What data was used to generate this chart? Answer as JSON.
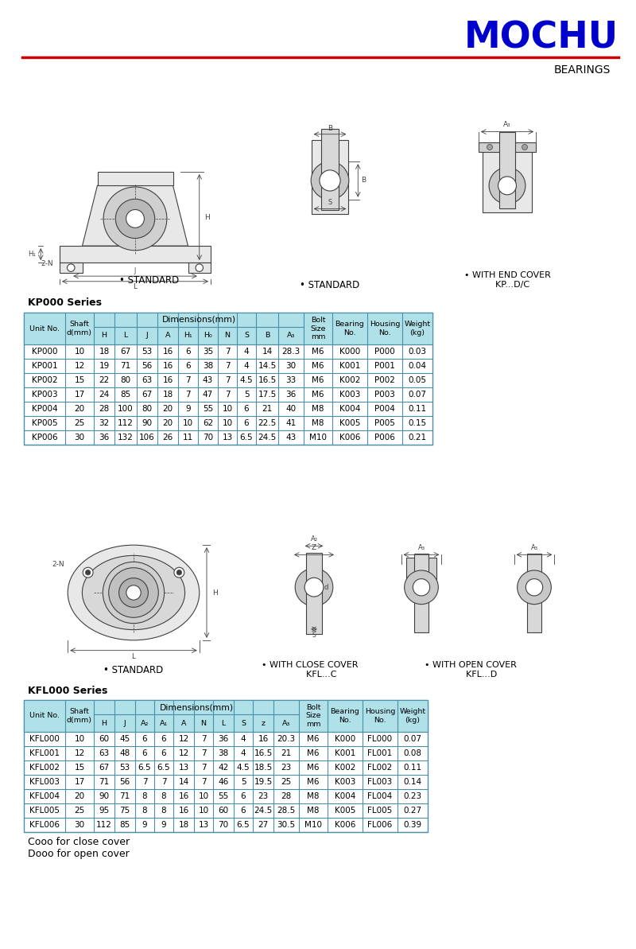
{
  "title": "MOCHU",
  "subtitle": "BEARINGS",
  "title_color": "#0000CC",
  "subtitle_color": "#000000",
  "red_line_color": "#CC0000",
  "bg_color": "#FFFFFF",
  "table_header_bg": "#B0E0E8",
  "table_border_color": "#4A8FA8",
  "kp_series_label": "KP000 Series",
  "kfl_series_label": "KFL000 Series",
  "standard_label": "• STANDARD",
  "end_cover_label": "• WITH END COVER\n    KP...D/C",
  "kfl_standard_label": "• STANDARD",
  "kfl_close_label": "• WITH CLOSE COVER\n        KFL...C",
  "kfl_open_label": "• WITH OPEN COVER\n        KFL...D",
  "footer1": "Cooo for close cover",
  "footer2": "Dooo for open cover",
  "kp_col_headers": [
    "Unit No.",
    "Shaft\nd(mm)",
    "H",
    "L",
    "J",
    "A",
    "H₁",
    "H₀",
    "N",
    "S",
    "B",
    "A₃",
    "Bolt\nSize\nmm",
    "Bearing\nNo.",
    "Housing\nNo.",
    "Weight\n(kg)"
  ],
  "kp_data": [
    [
      "KP000",
      "10",
      "18",
      "67",
      "53",
      "16",
      "6",
      "35",
      "7",
      "4",
      "14",
      "28.3",
      "M6",
      "K000",
      "P000",
      "0.03"
    ],
    [
      "KP001",
      "12",
      "19",
      "71",
      "56",
      "16",
      "6",
      "38",
      "7",
      "4",
      "14.5",
      "30",
      "M6",
      "K001",
      "P001",
      "0.04"
    ],
    [
      "KP002",
      "15",
      "22",
      "80",
      "63",
      "16",
      "7",
      "43",
      "7",
      "4.5",
      "16.5",
      "33",
      "M6",
      "K002",
      "P002",
      "0.05"
    ],
    [
      "KP003",
      "17",
      "24",
      "85",
      "67",
      "18",
      "7",
      "47",
      "7",
      "5",
      "17.5",
      "36",
      "M6",
      "K003",
      "P003",
      "0.07"
    ],
    [
      "KP004",
      "20",
      "28",
      "100",
      "80",
      "20",
      "9",
      "55",
      "10",
      "6",
      "21",
      "40",
      "M8",
      "K004",
      "P004",
      "0.11"
    ],
    [
      "KP005",
      "25",
      "32",
      "112",
      "90",
      "20",
      "10",
      "62",
      "10",
      "6",
      "22.5",
      "41",
      "M8",
      "K005",
      "P005",
      "0.15"
    ],
    [
      "KP006",
      "30",
      "36",
      "132",
      "106",
      "26",
      "11",
      "70",
      "13",
      "6.5",
      "24.5",
      "43",
      "M10",
      "K006",
      "P006",
      "0.21"
    ]
  ],
  "kfl_col_headers": [
    "Unit No.",
    "Shaft\nd(mm)",
    "H",
    "J",
    "A₂",
    "A₁",
    "A",
    "N",
    "L",
    "S",
    "z",
    "A₃",
    "Bolt\nSize\nmm",
    "Bearing\nNo.",
    "Housing\nNo.",
    "Weight\n(kg)"
  ],
  "kfl_data": [
    [
      "KFL000",
      "10",
      "60",
      "45",
      "6",
      "6",
      "12",
      "7",
      "36",
      "4",
      "16",
      "20.3",
      "M6",
      "K000",
      "FL000",
      "0.07"
    ],
    [
      "KFL001",
      "12",
      "63",
      "48",
      "6",
      "6",
      "12",
      "7",
      "38",
      "4",
      "16.5",
      "21",
      "M6",
      "K001",
      "FL001",
      "0.08"
    ],
    [
      "KFL002",
      "15",
      "67",
      "53",
      "6.5",
      "6.5",
      "13",
      "7",
      "42",
      "4.5",
      "18.5",
      "23",
      "M6",
      "K002",
      "FL002",
      "0.11"
    ],
    [
      "KFL003",
      "17",
      "71",
      "56",
      "7",
      "7",
      "14",
      "7",
      "46",
      "5",
      "19.5",
      "25",
      "M6",
      "K003",
      "FL003",
      "0.14"
    ],
    [
      "KFL004",
      "20",
      "90",
      "71",
      "8",
      "8",
      "16",
      "10",
      "55",
      "6",
      "23",
      "28",
      "M8",
      "K004",
      "FL004",
      "0.23"
    ],
    [
      "KFL005",
      "25",
      "95",
      "75",
      "8",
      "8",
      "16",
      "10",
      "60",
      "6",
      "24.5",
      "28.5",
      "M8",
      "K005",
      "FL005",
      "0.27"
    ],
    [
      "KFL006",
      "30",
      "112",
      "85",
      "9",
      "9",
      "18",
      "13",
      "70",
      "6.5",
      "27",
      "30.5",
      "M10",
      "K006",
      "FL006",
      "0.39"
    ]
  ]
}
